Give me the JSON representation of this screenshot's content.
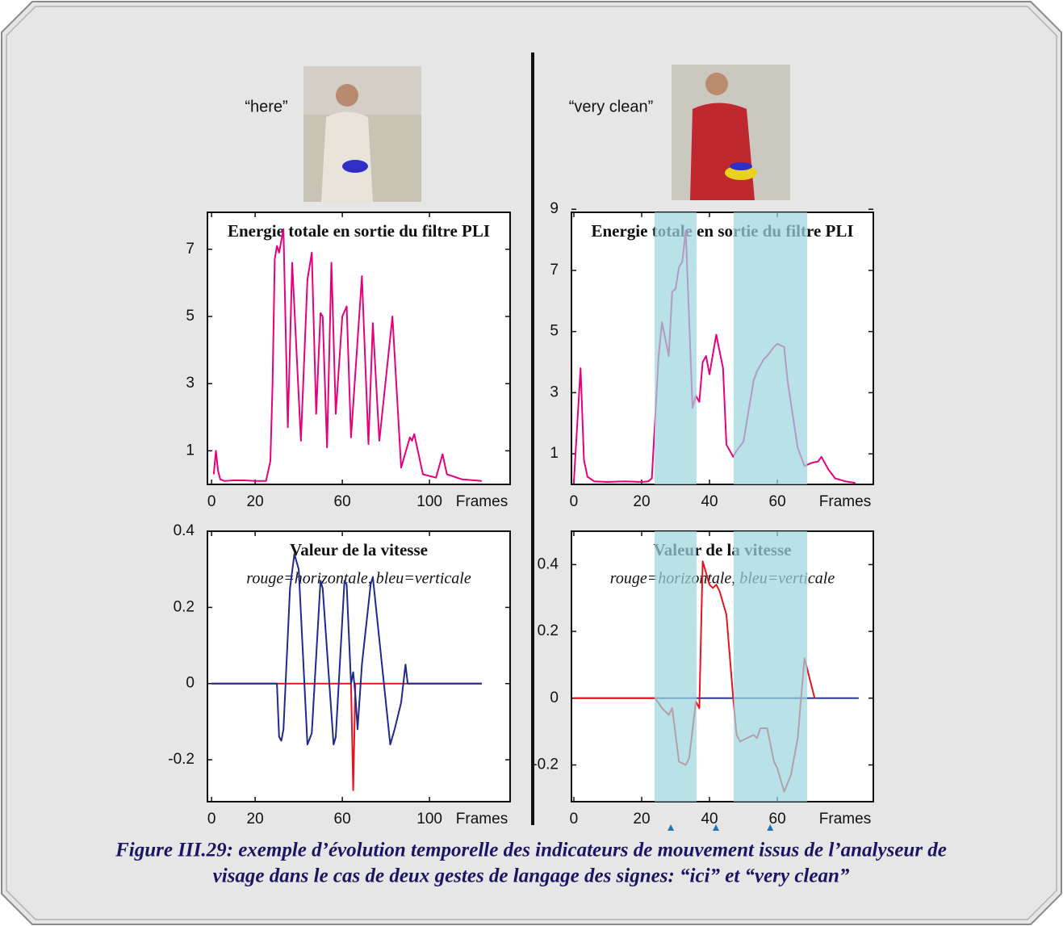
{
  "photo_labels": [
    "“here”",
    "“very clean”"
  ],
  "caption_lines": [
    "Figure III.29: exemple d’évolution temporelle des indicateurs de mouvement issus de l’analyseur de",
    "visage dans le cas de deux gestes de langage des signes: “ici” et “very clean”"
  ],
  "chart_data": [
    {
      "type": "line",
      "title": "Energie totale en sortie du filtre PLI",
      "xlabel": "Frames",
      "xlim": [
        -1.9,
        137
      ],
      "ylim": [
        0,
        8.1
      ],
      "xticks": [
        0,
        20,
        60,
        100
      ],
      "yticks": [
        1,
        3,
        5,
        7
      ],
      "series": [
        {
          "color": "#e6007e",
          "x": [
            1,
            2,
            3,
            4,
            6,
            10,
            15,
            20,
            25,
            27,
            28,
            29,
            30,
            31,
            33,
            35,
            37,
            41,
            44,
            46,
            48,
            50,
            51,
            53,
            55,
            57,
            60,
            62,
            64,
            69,
            72,
            74,
            77,
            83,
            87,
            91,
            92,
            93,
            97,
            103,
            106,
            108,
            115,
            124
          ],
          "values": [
            0.3,
            1.0,
            0.4,
            0.15,
            0.1,
            0.12,
            0.12,
            0.1,
            0.1,
            0.7,
            3.0,
            6.7,
            7.1,
            6.9,
            7.6,
            1.7,
            6.6,
            1.3,
            6.1,
            6.9,
            2.1,
            5.1,
            5.0,
            1.1,
            6.6,
            2.1,
            5.0,
            5.3,
            1.4,
            6.2,
            1.2,
            4.8,
            1.3,
            5.0,
            0.5,
            1.4,
            1.3,
            1.5,
            0.3,
            0.2,
            0.9,
            0.3,
            0.15,
            0.1
          ]
        }
      ]
    },
    {
      "type": "line",
      "title": "Valeur de la vitesse",
      "subtitle": "rouge=horizontale, bleu=verticale",
      "xlabel": "Frames",
      "xlim": [
        -1.9,
        137
      ],
      "ylim": [
        -0.31,
        0.4
      ],
      "xticks": [
        0,
        20,
        60,
        100
      ],
      "yticks": [
        -0.2,
        0,
        0.2,
        0.4
      ],
      "series": [
        {
          "color": "#e8141b",
          "x": [
            0,
            64,
            65,
            66,
            124
          ],
          "values": [
            0,
            0,
            -0.28,
            0,
            0
          ]
        },
        {
          "color": "#1f2a8a",
          "x": [
            0,
            30,
            31,
            32,
            33,
            36,
            38,
            40,
            44,
            46,
            50,
            51,
            56,
            57,
            61,
            62,
            64,
            65,
            66,
            67,
            69,
            73,
            74,
            82,
            84,
            87,
            89,
            90,
            124
          ],
          "values": [
            0,
            0,
            -0.14,
            -0.15,
            -0.12,
            0.25,
            0.34,
            0.3,
            -0.16,
            -0.13,
            0.27,
            0.25,
            -0.16,
            -0.14,
            0.27,
            0.26,
            0,
            0.03,
            -0.03,
            -0.12,
            0.05,
            0.26,
            0.28,
            -0.16,
            -0.12,
            -0.05,
            0.05,
            0,
            0
          ]
        }
      ]
    },
    {
      "type": "line",
      "title": "Energie totale en sortie du filtre PLI",
      "xlabel": "Frames",
      "xlim": [
        -0.7,
        88.3
      ],
      "ylim": [
        0,
        8.9
      ],
      "xticks": [
        0,
        20,
        40,
        60
      ],
      "yticks": [
        1,
        3,
        5,
        7,
        9
      ],
      "spans": [
        [
          23.8,
          36.2
        ],
        [
          47.1,
          68.8
        ]
      ],
      "series": [
        {
          "color": "#e6007e",
          "x": [
            0,
            2,
            3,
            4,
            6,
            10,
            15,
            20,
            22,
            23,
            25,
            26,
            28,
            29,
            30,
            31,
            32,
            33,
            35,
            36,
            37,
            38,
            39,
            40,
            42,
            44,
            45,
            47,
            48,
            50,
            53,
            54,
            56,
            57,
            59,
            60,
            62,
            63,
            66,
            68,
            70,
            72,
            73,
            75,
            77,
            80,
            83
          ],
          "values": [
            0.05,
            3.8,
            0.8,
            0.25,
            0.1,
            0.08,
            0.1,
            0.08,
            0.1,
            0.2,
            4.2,
            5.3,
            4.2,
            6.3,
            6.4,
            7.1,
            7.3,
            8.3,
            2.5,
            2.9,
            2.7,
            4.0,
            4.2,
            3.6,
            4.9,
            3.8,
            1.3,
            0.9,
            1.1,
            1.4,
            3.4,
            3.7,
            4.1,
            4.2,
            4.5,
            4.6,
            4.5,
            3.4,
            1.2,
            0.6,
            0.7,
            0.75,
            0.9,
            0.5,
            0.2,
            0.1,
            0.05
          ]
        }
      ]
    },
    {
      "type": "line",
      "title": "Valeur de la vitesse",
      "subtitle": "rouge=horizontale, bleu=verticale",
      "xlabel": "Frames",
      "xlim": [
        -0.7,
        88.3
      ],
      "ylim": [
        -0.31,
        0.5
      ],
      "xticks": [
        0,
        20,
        40,
        60
      ],
      "yticks": [
        -0.2,
        0,
        0.2,
        0.4
      ],
      "spans": [
        [
          23.8,
          36.2
        ],
        [
          47.1,
          68.8
        ]
      ],
      "markers": [
        28.6,
        41.9,
        57.9
      ],
      "series": [
        {
          "color": "#2b3990",
          "x": [
            0,
            84
          ],
          "values": [
            0,
            0
          ]
        },
        {
          "color": "#e8141b",
          "x": [
            0,
            24,
            26,
            28,
            29,
            31,
            33,
            34,
            36,
            37,
            38,
            40,
            41,
            42,
            43,
            45,
            47,
            48,
            49,
            51,
            53,
            54,
            55,
            57,
            59,
            60,
            62,
            64,
            66,
            68,
            71
          ],
          "values": [
            0,
            0,
            -0.03,
            -0.05,
            -0.03,
            -0.19,
            -0.2,
            -0.18,
            -0.01,
            -0.03,
            0.41,
            0.34,
            0.33,
            0.34,
            0.32,
            0.25,
            0,
            -0.11,
            -0.13,
            -0.12,
            -0.11,
            -0.12,
            -0.09,
            -0.09,
            -0.19,
            -0.21,
            -0.28,
            -0.23,
            -0.12,
            0.12,
            0
          ]
        }
      ]
    }
  ]
}
